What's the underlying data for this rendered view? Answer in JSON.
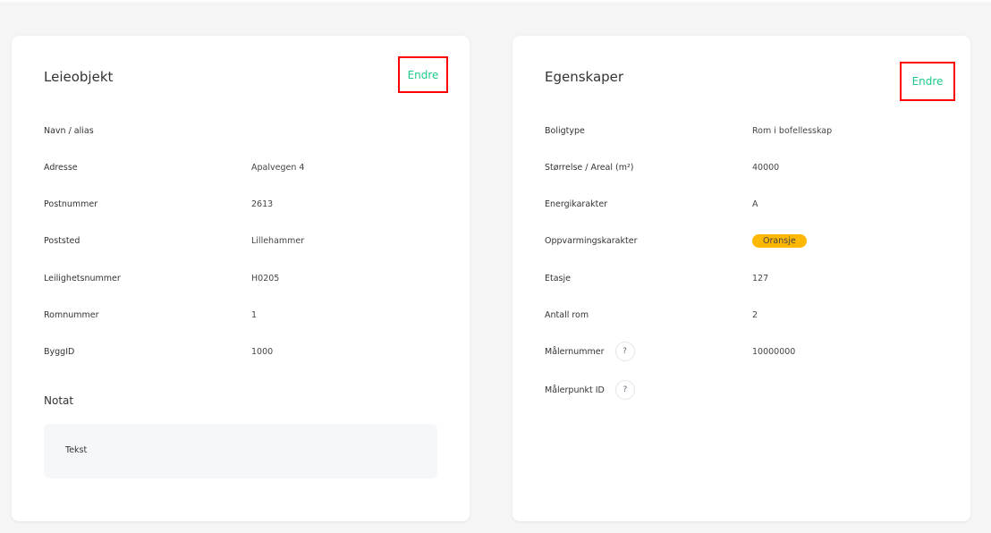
{
  "leieobjekt": {
    "title": "Leieobjekt",
    "edit_label": "Endre",
    "rows": [
      {
        "label": "Navn / alias",
        "value": ""
      },
      {
        "label": "Adresse",
        "value": "Apalvegen 4"
      },
      {
        "label": "Postnummer",
        "value": "2613"
      },
      {
        "label": "Poststed",
        "value": "Lillehammer"
      },
      {
        "label": "Leilighetsnummer",
        "value": "H0205"
      },
      {
        "label": "Romnummer",
        "value": "1"
      },
      {
        "label": "ByggID",
        "value": "1000"
      }
    ],
    "note_title": "Notat",
    "note_text": "Tekst"
  },
  "egenskaper": {
    "title": "Egenskaper",
    "edit_label": "Endre",
    "rows": [
      {
        "label": "Boligtype",
        "value": "Rom i bofellesskap"
      },
      {
        "label": "Størrelse / Areal (m²)",
        "value": "40000"
      },
      {
        "label": "Energikarakter",
        "value": "A"
      },
      {
        "label": "Oppvarmingskarakter",
        "value": "Oransje"
      },
      {
        "label": "Etasje",
        "value": "127"
      },
      {
        "label": "Antall rom",
        "value": "2"
      },
      {
        "label": "Målernummer",
        "value": "10000000",
        "help": "?"
      },
      {
        "label": "Målerpunkt ID",
        "value": "",
        "help": "?"
      }
    ],
    "badge_color": "#ffb800"
  },
  "colors": {
    "accent": "#1fc98a",
    "highlight_box": "#ff0000"
  }
}
